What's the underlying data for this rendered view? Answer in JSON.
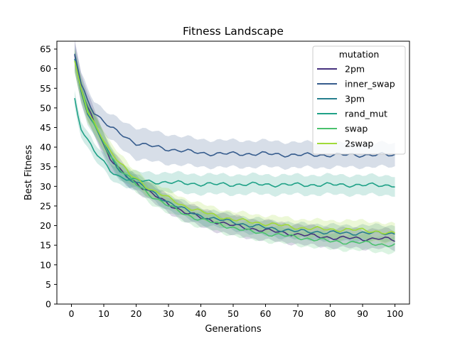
{
  "chart_data": {
    "type": "line",
    "title": "Fitness Landscape",
    "xlabel": "Generations",
    "ylabel": "Best Fitness",
    "xlim": [
      -4.5,
      104.5
    ],
    "ylim": [
      0,
      67
    ],
    "xticks": [
      0,
      10,
      20,
      30,
      40,
      50,
      60,
      70,
      80,
      90,
      100
    ],
    "yticks": [
      0,
      5,
      10,
      15,
      20,
      25,
      30,
      35,
      40,
      45,
      50,
      55,
      60,
      65
    ],
    "grid": false,
    "legend": {
      "title": "mutation",
      "placement": "top-right"
    },
    "series": [
      {
        "name": "2pm",
        "color": "#46327e",
        "points": [
          [
            1,
            63.5
          ],
          [
            3,
            55
          ],
          [
            5,
            50
          ],
          [
            8,
            45
          ],
          [
            10,
            40.5
          ],
          [
            12,
            37
          ],
          [
            15,
            34
          ],
          [
            18,
            32
          ],
          [
            20,
            31
          ],
          [
            25,
            28
          ],
          [
            30,
            25.5
          ],
          [
            35,
            23.5
          ],
          [
            40,
            22
          ],
          [
            45,
            21
          ],
          [
            50,
            20
          ],
          [
            55,
            19.3
          ],
          [
            60,
            18.8
          ],
          [
            65,
            18.2
          ],
          [
            70,
            17.8
          ],
          [
            75,
            17.3
          ],
          [
            80,
            17
          ],
          [
            85,
            16.8
          ],
          [
            90,
            16.6
          ],
          [
            95,
            16.8
          ],
          [
            100,
            16.2
          ]
        ],
        "band": [
          [
            1,
            4
          ],
          [
            20,
            2
          ],
          [
            50,
            2.5
          ],
          [
            100,
            2.5
          ]
        ]
      },
      {
        "name": "inner_swap",
        "color": "#365c8d",
        "points": [
          [
            1,
            63.8
          ],
          [
            3,
            56
          ],
          [
            5,
            52
          ],
          [
            7,
            49
          ],
          [
            10,
            46.5
          ],
          [
            12,
            45
          ],
          [
            15,
            43.5
          ],
          [
            18,
            42
          ],
          [
            20,
            41
          ],
          [
            25,
            40.2
          ],
          [
            30,
            39.5
          ],
          [
            35,
            39
          ],
          [
            40,
            38.5
          ],
          [
            45,
            38.3
          ],
          [
            50,
            38.3
          ],
          [
            55,
            38.3
          ],
          [
            60,
            38.3
          ],
          [
            65,
            38.1
          ],
          [
            70,
            38
          ],
          [
            75,
            38
          ],
          [
            80,
            38
          ],
          [
            85,
            38
          ],
          [
            90,
            38
          ],
          [
            95,
            38
          ],
          [
            100,
            38
          ]
        ],
        "band": [
          [
            1,
            3
          ],
          [
            10,
            3
          ],
          [
            20,
            4
          ],
          [
            40,
            3.5
          ],
          [
            100,
            3
          ]
        ]
      },
      {
        "name": "3pm",
        "color": "#277f8e",
        "points": [
          [
            1,
            62.5
          ],
          [
            3,
            54
          ],
          [
            5,
            49
          ],
          [
            8,
            44
          ],
          [
            10,
            41
          ],
          [
            12,
            37.5
          ],
          [
            15,
            34
          ],
          [
            18,
            32
          ],
          [
            20,
            31
          ],
          [
            25,
            28.5
          ],
          [
            30,
            26
          ],
          [
            35,
            24
          ],
          [
            40,
            22.5
          ],
          [
            45,
            21.5
          ],
          [
            50,
            21
          ],
          [
            55,
            20
          ],
          [
            60,
            19.5
          ],
          [
            65,
            19
          ],
          [
            70,
            18.5
          ],
          [
            75,
            18.5
          ],
          [
            80,
            18.2
          ],
          [
            85,
            18
          ],
          [
            90,
            18.2
          ],
          [
            95,
            18
          ],
          [
            100,
            18
          ]
        ],
        "band": [
          [
            1,
            3
          ],
          [
            20,
            2
          ],
          [
            50,
            2
          ],
          [
            100,
            2
          ]
        ]
      },
      {
        "name": "rand_mut",
        "color": "#1fa187",
        "points": [
          [
            1,
            52.5
          ],
          [
            2,
            48
          ],
          [
            3,
            45
          ],
          [
            5,
            42
          ],
          [
            7,
            39
          ],
          [
            10,
            36
          ],
          [
            12,
            34
          ],
          [
            15,
            32.5
          ],
          [
            18,
            31.8
          ],
          [
            20,
            31.5
          ],
          [
            25,
            31.2
          ],
          [
            30,
            31
          ],
          [
            35,
            30.8
          ],
          [
            40,
            30.6
          ],
          [
            45,
            30.5
          ],
          [
            50,
            30.5
          ],
          [
            55,
            30.5
          ],
          [
            60,
            30.5
          ],
          [
            65,
            30.4
          ],
          [
            70,
            30.4
          ],
          [
            75,
            30.4
          ],
          [
            80,
            30.4
          ],
          [
            85,
            30.4
          ],
          [
            90,
            30.3
          ],
          [
            95,
            30.3
          ],
          [
            100,
            30.3
          ]
        ],
        "band": [
          [
            1,
            2
          ],
          [
            15,
            2
          ],
          [
            30,
            2.5
          ],
          [
            100,
            2.5
          ]
        ]
      },
      {
        "name": "swap",
        "color": "#4ac16d",
        "points": [
          [
            1,
            62
          ],
          [
            3,
            55
          ],
          [
            5,
            49.5
          ],
          [
            8,
            44
          ],
          [
            10,
            41
          ],
          [
            12,
            38
          ],
          [
            15,
            34.5
          ],
          [
            18,
            32
          ],
          [
            20,
            30.5
          ],
          [
            25,
            27.5
          ],
          [
            30,
            25
          ],
          [
            35,
            23
          ],
          [
            40,
            21.5
          ],
          [
            45,
            20.5
          ],
          [
            50,
            19.5
          ],
          [
            55,
            18.5
          ],
          [
            60,
            18
          ],
          [
            65,
            17.5
          ],
          [
            70,
            17
          ],
          [
            75,
            16.5
          ],
          [
            80,
            16
          ],
          [
            85,
            15.8
          ],
          [
            90,
            15.6
          ],
          [
            95,
            15.3
          ],
          [
            100,
            15
          ]
        ],
        "band": [
          [
            1,
            3
          ],
          [
            20,
            2
          ],
          [
            50,
            2
          ],
          [
            100,
            2
          ]
        ]
      },
      {
        "name": "2swap",
        "color": "#a0da39",
        "points": [
          [
            1,
            62
          ],
          [
            3,
            54.5
          ],
          [
            5,
            49
          ],
          [
            8,
            44.5
          ],
          [
            10,
            42
          ],
          [
            12,
            39
          ],
          [
            15,
            36
          ],
          [
            18,
            33
          ],
          [
            20,
            32
          ],
          [
            25,
            29
          ],
          [
            30,
            27
          ],
          [
            35,
            25
          ],
          [
            40,
            23.5
          ],
          [
            45,
            22.5
          ],
          [
            50,
            21.5
          ],
          [
            55,
            21
          ],
          [
            60,
            20.5
          ],
          [
            65,
            20
          ],
          [
            70,
            19.5
          ],
          [
            75,
            19.2
          ],
          [
            80,
            19
          ],
          [
            85,
            19
          ],
          [
            90,
            18.8
          ],
          [
            95,
            18.5
          ],
          [
            100,
            17.8
          ]
        ],
        "band": [
          [
            1,
            3
          ],
          [
            20,
            2
          ],
          [
            50,
            2
          ],
          [
            100,
            2.5
          ]
        ]
      }
    ]
  }
}
